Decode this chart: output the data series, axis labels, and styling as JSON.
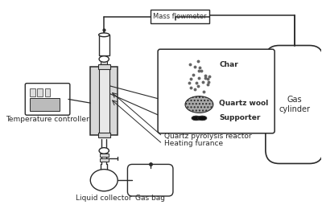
{
  "bg_color": "#ffffff",
  "line_color": "#2a2a2a",
  "fill_light": "#d8d8d8",
  "fill_dark": "#555555",
  "labels": {
    "mass_flowmeter": "Mass flowmeter",
    "char": "Char",
    "quartz_wool": "Quartz wool",
    "supporter": "Supporter",
    "quartz_reactor": "Quartz pyrolysis reactor",
    "heating_furnace": "Heating furance",
    "temp_controller": "Temperature controller",
    "liquid_collector": "Liquid collector",
    "gas_bag": "Gas bag",
    "gas_cylinder": "Gas\ncylinder"
  },
  "font_size": 6.5,
  "figsize": [
    4.0,
    2.6
  ],
  "dpi": 100
}
